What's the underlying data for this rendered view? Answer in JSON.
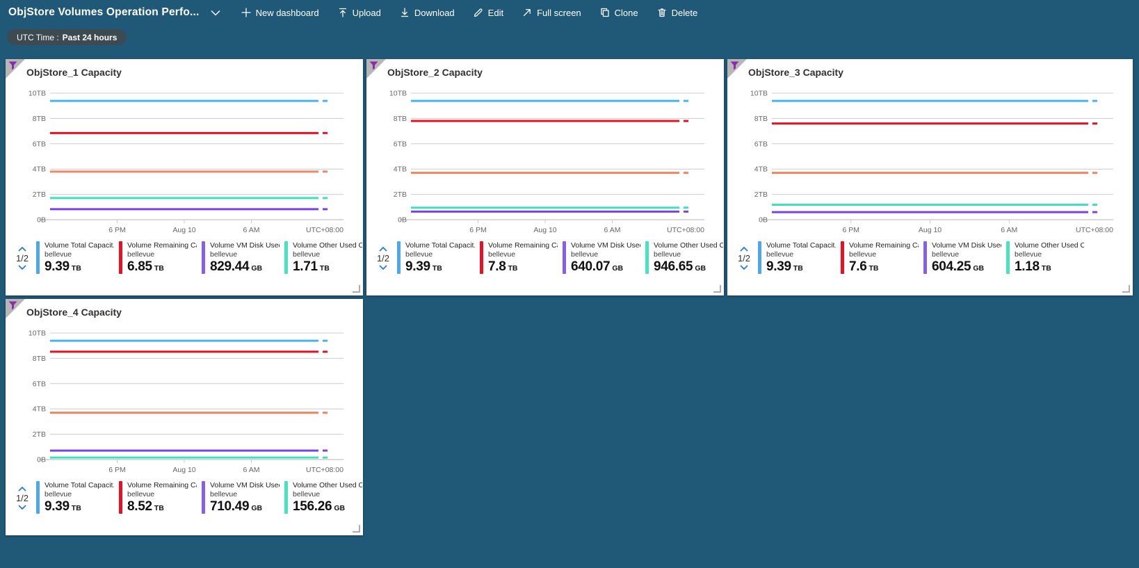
{
  "toolbar": {
    "title": "ObjStore Volumes Operation Perfo...",
    "title_chevron_icon": "chevron-down-icon",
    "items": [
      {
        "label": "New dashboard",
        "icon": "plus-icon"
      },
      {
        "label": "Upload",
        "icon": "upload-icon"
      },
      {
        "label": "Download",
        "icon": "download-icon"
      },
      {
        "label": "Edit",
        "icon": "edit-icon"
      },
      {
        "label": "Full screen",
        "icon": "fullscreen-icon"
      },
      {
        "label": "Clone",
        "icon": "clone-icon"
      },
      {
        "label": "Delete",
        "icon": "delete-icon"
      }
    ]
  },
  "filter_pill": {
    "prefix": "UTC Time :",
    "value": "Past 24 hours"
  },
  "legend_pager": {
    "page": "1/2"
  },
  "colors": {
    "background": "#205978",
    "pill_bg": "#3E4A52",
    "tile_bg": "#FFFFFF",
    "corner_triangle": "#B7B7B7",
    "funnel": "#8A2BA8",
    "pager_chevron": "#2B7CD3",
    "gridline": "#CCCCCC",
    "axis_text": "#666666"
  },
  "chart_data": [
    {
      "type": "line",
      "title": "ObjStore_1 Capacity",
      "ylim": [
        0,
        10
      ],
      "y_unit": "TB",
      "y_tick_labels": [
        "10TB",
        "8TB",
        "6TB",
        "4TB",
        "2TB",
        "0B"
      ],
      "x_ticks": [
        "6 PM",
        "Aug 10",
        "6 AM"
      ],
      "x_right_annotation": "UTC+08:00",
      "series": [
        {
          "legend_label": "Volume Total Capacit...",
          "resource": "bellevue",
          "display_value": "9.39",
          "display_unit": "TB",
          "value_tb": 9.39,
          "color": "#47B4EC",
          "legend_color": "#4CA7EE"
        },
        {
          "legend_label": "Volume Remaining Cap...",
          "resource": "bellevue",
          "display_value": "6.85",
          "display_unit": "TB",
          "value_tb": 6.85,
          "color": "#E81123",
          "legend_color": "#E81123"
        },
        {
          "legend_label": "Volume VM Disk Used ...",
          "resource": "bellevue",
          "display_value": "829.44",
          "display_unit": "GB",
          "value_tb": 0.83,
          "color": "#7A42E4",
          "legend_color": "#8661E8"
        },
        {
          "legend_label": "Volume Other Used Ca...",
          "resource": "bellevue",
          "display_value": "1.71",
          "display_unit": "TB",
          "value_tb": 1.71,
          "color": "#3EE0BE",
          "legend_color": "#46E3BE"
        },
        {
          "legend_label": null,
          "resource": "bellevue",
          "display_value": null,
          "display_unit": null,
          "value_tb": 3.8,
          "color": "#EF8662",
          "legend_color": null
        }
      ]
    },
    {
      "type": "line",
      "title": "ObjStore_2 Capacity",
      "ylim": [
        0,
        10
      ],
      "y_unit": "TB",
      "y_tick_labels": [
        "10TB",
        "8TB",
        "6TB",
        "4TB",
        "2TB",
        "0B"
      ],
      "x_ticks": [
        "6 PM",
        "Aug 10",
        "6 AM"
      ],
      "x_right_annotation": "UTC+08:00",
      "series": [
        {
          "legend_label": "Volume Total Capacit...",
          "resource": "bellevue",
          "display_value": "9.39",
          "display_unit": "TB",
          "value_tb": 9.39,
          "color": "#47B4EC",
          "legend_color": "#4CA7EE"
        },
        {
          "legend_label": "Volume Remaining Cap...",
          "resource": "bellevue",
          "display_value": "7.8",
          "display_unit": "TB",
          "value_tb": 7.8,
          "color": "#E81123",
          "legend_color": "#E81123"
        },
        {
          "legend_label": "Volume VM Disk Used ...",
          "resource": "bellevue",
          "display_value": "640.07",
          "display_unit": "GB",
          "value_tb": 0.64,
          "color": "#7A42E4",
          "legend_color": "#8661E8"
        },
        {
          "legend_label": "Volume Other Used Ca...",
          "resource": "bellevue",
          "display_value": "946.65",
          "display_unit": "GB",
          "value_tb": 0.95,
          "color": "#3EE0BE",
          "legend_color": "#46E3BE"
        },
        {
          "legend_label": null,
          "resource": "bellevue",
          "display_value": null,
          "display_unit": null,
          "value_tb": 3.7,
          "color": "#EF8662",
          "legend_color": null
        }
      ]
    },
    {
      "type": "line",
      "title": "ObjStore_3 Capacity",
      "ylim": [
        0,
        10
      ],
      "y_unit": "TB",
      "y_tick_labels": [
        "10TB",
        "8TB",
        "6TB",
        "4TB",
        "2TB",
        "0B"
      ],
      "x_ticks": [
        "6 PM",
        "Aug 10",
        "6 AM"
      ],
      "x_right_annotation": "UTC+08:00",
      "series": [
        {
          "legend_label": "Volume Total Capacit...",
          "resource": "bellevue",
          "display_value": "9.39",
          "display_unit": "TB",
          "value_tb": 9.39,
          "color": "#47B4EC",
          "legend_color": "#4CA7EE"
        },
        {
          "legend_label": "Volume Remaining Cap...",
          "resource": "bellevue",
          "display_value": "7.6",
          "display_unit": "TB",
          "value_tb": 7.6,
          "color": "#E81123",
          "legend_color": "#E81123"
        },
        {
          "legend_label": "Volume VM Disk Used ...",
          "resource": "bellevue",
          "display_value": "604.25",
          "display_unit": "GB",
          "value_tb": 0.6,
          "color": "#7A42E4",
          "legend_color": "#8661E8"
        },
        {
          "legend_label": "Volume Other Used Ca...",
          "resource": "bellevue",
          "display_value": "1.18",
          "display_unit": "TB",
          "value_tb": 1.18,
          "color": "#3EE0BE",
          "legend_color": "#46E3BE"
        },
        {
          "legend_label": null,
          "resource": "bellevue",
          "display_value": null,
          "display_unit": null,
          "value_tb": 3.7,
          "color": "#EF8662",
          "legend_color": null
        }
      ]
    },
    {
      "type": "line",
      "title": "ObjStore_4 Capacity",
      "ylim": [
        0,
        10
      ],
      "y_unit": "TB",
      "y_tick_labels": [
        "10TB",
        "8TB",
        "6TB",
        "4TB",
        "2TB",
        "0B"
      ],
      "x_ticks": [
        "6 PM",
        "Aug 10",
        "6 AM"
      ],
      "x_right_annotation": "UTC+08:00",
      "series": [
        {
          "legend_label": "Volume Total Capacit...",
          "resource": "bellevue",
          "display_value": "9.39",
          "display_unit": "TB",
          "value_tb": 9.39,
          "color": "#47B4EC",
          "legend_color": "#4CA7EE"
        },
        {
          "legend_label": "Volume Remaining Cap...",
          "resource": "bellevue",
          "display_value": "8.52",
          "display_unit": "TB",
          "value_tb": 8.52,
          "color": "#E81123",
          "legend_color": "#E81123"
        },
        {
          "legend_label": "Volume VM Disk Used ...",
          "resource": "bellevue",
          "display_value": "710.49",
          "display_unit": "GB",
          "value_tb": 0.71,
          "color": "#7A42E4",
          "legend_color": "#8661E8"
        },
        {
          "legend_label": "Volume Other Used Ca...",
          "resource": "bellevue",
          "display_value": "156.26",
          "display_unit": "GB",
          "value_tb": 0.156,
          "color": "#3EE0BE",
          "legend_color": "#46E3BE"
        },
        {
          "legend_label": null,
          "resource": "bellevue",
          "display_value": null,
          "display_unit": null,
          "value_tb": 3.7,
          "color": "#EF8662",
          "legend_color": null
        }
      ]
    }
  ]
}
